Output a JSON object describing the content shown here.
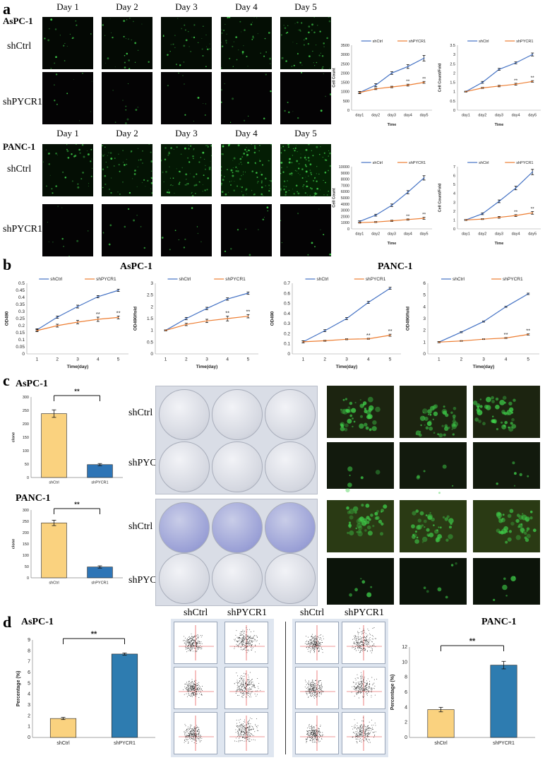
{
  "panels": {
    "a": "a",
    "b": "b",
    "c": "c",
    "d": "d"
  },
  "lines": {
    "aspc": "AsPC-1",
    "panc": "PANC-1"
  },
  "groups": {
    "ctrl": "shCtrl",
    "kd": "shPYCR1"
  },
  "days": [
    "Day 1",
    "Day 2",
    "Day 3",
    "Day 4",
    "Day 5"
  ],
  "colors": {
    "ctrl_line": "#4472C4",
    "kd_line": "#ED7D31",
    "ctrl_bar": "#FAD27F",
    "kd_bar_c": "#2E75B6",
    "kd_bar_d": "#2E7CB0",
    "green": "#3fd04a"
  },
  "sig": "**",
  "chart_data": [
    {
      "id": "a1",
      "type": "line",
      "xlabel": "Time",
      "ylabel": "Cell Count",
      "categories": [
        "day1",
        "day2",
        "day3",
        "day4",
        "day5"
      ],
      "ylim": [
        0,
        3500
      ],
      "yticks": [
        0,
        500,
        1000,
        1500,
        2000,
        2500,
        3000,
        3500
      ],
      "series": [
        {
          "name": "shCtrl",
          "values": [
            950,
            1350,
            2000,
            2350,
            2800
          ],
          "err": [
            60,
            80,
            70,
            100,
            150
          ]
        },
        {
          "name": "shPYCR1",
          "values": [
            950,
            1150,
            1250,
            1350,
            1500
          ],
          "err": [
            40,
            40,
            40,
            50,
            50
          ]
        }
      ],
      "annotations": [
        {
          "x": "day4",
          "text": "**"
        },
        {
          "x": "day5",
          "text": "**"
        }
      ]
    },
    {
      "id": "a2",
      "type": "line",
      "xlabel": "Time",
      "ylabel": "Cell Count/Fold",
      "categories": [
        "day1",
        "day2",
        "day3",
        "day4",
        "day5"
      ],
      "ylim": [
        0,
        3.5
      ],
      "yticks": [
        0,
        0.5,
        1,
        1.5,
        2,
        2.5,
        3,
        3.5
      ],
      "series": [
        {
          "name": "shCtrl",
          "values": [
            1,
            1.5,
            2.2,
            2.55,
            3.0
          ],
          "err": [
            0.02,
            0.05,
            0.05,
            0.05,
            0.08
          ]
        },
        {
          "name": "shPYCR1",
          "values": [
            1,
            1.2,
            1.3,
            1.4,
            1.55
          ],
          "err": [
            0.02,
            0.03,
            0.04,
            0.05,
            0.04
          ]
        }
      ],
      "annotations": [
        {
          "x": "day4",
          "text": "**"
        },
        {
          "x": "day5",
          "text": "**"
        }
      ]
    },
    {
      "id": "a3",
      "type": "line",
      "xlabel": "Time",
      "ylabel": "Cell Count",
      "categories": [
        "day1",
        "day2",
        "day3",
        "day4",
        "day5"
      ],
      "ylim": [
        0,
        10000
      ],
      "yticks": [
        0,
        1000,
        2000,
        3000,
        4000,
        5000,
        6000,
        7000,
        8000,
        9000,
        10000
      ],
      "series": [
        {
          "name": "shCtrl",
          "values": [
            1200,
            2200,
            3800,
            5900,
            8200
          ],
          "err": [
            100,
            150,
            200,
            250,
            350
          ]
        },
        {
          "name": "shPYCR1",
          "values": [
            1000,
            1100,
            1300,
            1500,
            1700
          ],
          "err": [
            80,
            80,
            100,
            100,
            150
          ]
        }
      ],
      "annotations": [
        {
          "x": "day4",
          "text": "**"
        },
        {
          "x": "day5",
          "text": "**"
        }
      ]
    },
    {
      "id": "a4",
      "type": "line",
      "xlabel": "Time",
      "ylabel": "Cell Count/Fold",
      "categories": [
        "day1",
        "day2",
        "day3",
        "day4",
        "day5"
      ],
      "ylim": [
        0,
        7
      ],
      "yticks": [
        0,
        1,
        2,
        3,
        4,
        5,
        6,
        7
      ],
      "series": [
        {
          "name": "shCtrl",
          "values": [
            1,
            1.7,
            3.1,
            4.6,
            6.4
          ],
          "err": [
            0.05,
            0.1,
            0.15,
            0.2,
            0.3
          ]
        },
        {
          "name": "shPYCR1",
          "values": [
            1,
            1.1,
            1.3,
            1.5,
            1.8
          ],
          "err": [
            0.05,
            0.05,
            0.1,
            0.1,
            0.15
          ]
        }
      ],
      "annotations": [
        {
          "x": "day4",
          "text": "**"
        },
        {
          "x": "day5",
          "text": "**"
        }
      ]
    },
    {
      "id": "b1",
      "type": "line",
      "xlabel": "Time(day)",
      "ylabel": "OD490",
      "categories": [
        "1",
        "2",
        "3",
        "4",
        "5"
      ],
      "ylim": [
        0,
        0.5
      ],
      "yticks": [
        0,
        0.05,
        0.1,
        0.15,
        0.2,
        0.25,
        0.3,
        0.35,
        0.4,
        0.45,
        0.5
      ],
      "series": [
        {
          "name": "shCtrl",
          "values": [
            0.17,
            0.26,
            0.335,
            0.405,
            0.45
          ],
          "err": [
            0.008,
            0.008,
            0.01,
            0.008,
            0.008
          ]
        },
        {
          "name": "shPYCR1",
          "values": [
            0.165,
            0.2,
            0.225,
            0.245,
            0.258
          ],
          "err": [
            0.008,
            0.01,
            0.012,
            0.015,
            0.01
          ]
        }
      ],
      "annotations": [
        {
          "x": "4",
          "text": "**"
        },
        {
          "x": "5",
          "text": "**"
        }
      ]
    },
    {
      "id": "b2",
      "type": "line",
      "xlabel": "Time(day)",
      "ylabel": "OD490/fold",
      "categories": [
        "1",
        "2",
        "3",
        "4",
        "5"
      ],
      "ylim": [
        0,
        3
      ],
      "yticks": [
        0,
        0.5,
        1,
        1.5,
        2,
        2.5,
        3
      ],
      "series": [
        {
          "name": "shCtrl",
          "values": [
            1,
            1.5,
            1.93,
            2.33,
            2.58
          ],
          "err": [
            0.02,
            0.05,
            0.05,
            0.05,
            0.05
          ]
        },
        {
          "name": "shPYCR1",
          "values": [
            1,
            1.25,
            1.4,
            1.5,
            1.6
          ],
          "err": [
            0.02,
            0.05,
            0.07,
            0.1,
            0.07
          ]
        }
      ],
      "annotations": [
        {
          "x": "4",
          "text": "**"
        },
        {
          "x": "5",
          "text": "**"
        }
      ]
    },
    {
      "id": "b3",
      "type": "line",
      "xlabel": "Time(day)",
      "ylabel": "OD490",
      "categories": [
        "1",
        "2",
        "3",
        "4",
        "5"
      ],
      "ylim": [
        0,
        0.7
      ],
      "yticks": [
        0,
        0.1,
        0.2,
        0.3,
        0.4,
        0.5,
        0.6,
        0.7
      ],
      "series": [
        {
          "name": "shCtrl",
          "values": [
            0.12,
            0.23,
            0.35,
            0.51,
            0.65
          ],
          "err": [
            0.01,
            0.01,
            0.01,
            0.01,
            0.01
          ]
        },
        {
          "name": "shPYCR1",
          "values": [
            0.12,
            0.13,
            0.145,
            0.15,
            0.185
          ],
          "err": [
            0.01,
            0.005,
            0.005,
            0.005,
            0.01
          ]
        }
      ],
      "annotations": [
        {
          "x": "4",
          "text": "**"
        },
        {
          "x": "5",
          "text": "**"
        }
      ]
    },
    {
      "id": "b4",
      "type": "line",
      "xlabel": "Time(day)",
      "ylabel": "OD490/fold",
      "categories": [
        "1",
        "2",
        "3",
        "4",
        "5"
      ],
      "ylim": [
        0,
        6
      ],
      "yticks": [
        0,
        1,
        2,
        3,
        4,
        5,
        6
      ],
      "series": [
        {
          "name": "shCtrl",
          "values": [
            1,
            1.85,
            2.75,
            4.0,
            5.1
          ],
          "err": [
            0.05,
            0.05,
            0.05,
            0.05,
            0.06
          ]
        },
        {
          "name": "shPYCR1",
          "values": [
            1,
            1.1,
            1.25,
            1.35,
            1.65
          ],
          "err": [
            0.05,
            0.03,
            0.03,
            0.04,
            0.05
          ]
        }
      ],
      "annotations": [
        {
          "x": "4",
          "text": "**"
        },
        {
          "x": "5",
          "text": "**"
        }
      ]
    },
    {
      "id": "c1",
      "type": "bar",
      "ylabel": "clone",
      "categories": [
        "shCtrl",
        "shPYCR1"
      ],
      "values": [
        238,
        48
      ],
      "err": [
        14,
        4
      ],
      "ylim": [
        0,
        300
      ],
      "yticks": [
        0,
        50,
        100,
        150,
        200,
        250,
        300
      ],
      "annotation": "**"
    },
    {
      "id": "c2",
      "type": "bar",
      "ylabel": "clone",
      "categories": [
        "shCtrl",
        "shPYCR1"
      ],
      "values": [
        243,
        48
      ],
      "err": [
        12,
        5
      ],
      "ylim": [
        0,
        300
      ],
      "yticks": [
        0,
        50,
        100,
        150,
        200,
        250,
        300
      ],
      "annotation": "**"
    },
    {
      "id": "d1",
      "type": "bar",
      "ylabel": "Percentage (%)",
      "categories": [
        "shCtrl",
        "shPYCR1"
      ],
      "values": [
        1.75,
        7.7
      ],
      "err": [
        0.1,
        0.1
      ],
      "ylim": [
        0,
        9
      ],
      "yticks": [
        0,
        1,
        2,
        3,
        4,
        5,
        6,
        7,
        8,
        9
      ],
      "annotation": "**"
    },
    {
      "id": "d2",
      "type": "bar",
      "ylabel": "Percentage (%)",
      "categories": [
        "shCtrl",
        "shPYCR1"
      ],
      "values": [
        3.7,
        9.6
      ],
      "err": [
        0.3,
        0.5
      ],
      "ylim": [
        0,
        12
      ],
      "yticks": [
        0,
        2,
        4,
        6,
        8,
        10,
        12
      ],
      "annotation": "**"
    }
  ]
}
